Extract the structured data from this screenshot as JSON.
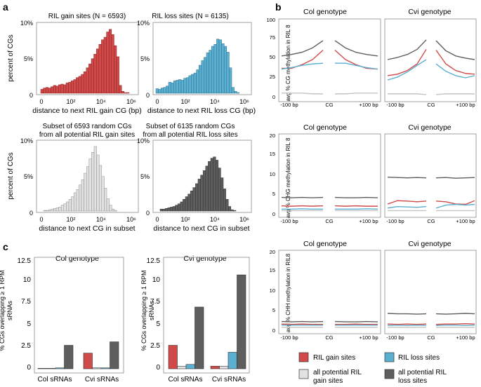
{
  "panel_labels": {
    "a": "a",
    "b": "b",
    "c": "c"
  },
  "colors": {
    "red": "#d14a4a",
    "red_edge": "#8a2020",
    "blue": "#5bafd0",
    "blue_edge": "#2a6f8c",
    "light": "#e2e2e2",
    "light_edge": "#8e8e8e",
    "dark": "#5e5e5e",
    "dark_edge": "#2f2f2f",
    "frame": "#8a8a8a"
  },
  "legend": {
    "items": [
      {
        "label": "RIL gain sites",
        "color": "#d14a4a"
      },
      {
        "label": "RIL loss sites",
        "color": "#5bafd0"
      },
      {
        "label": "all potential RIL gain sites",
        "line1": "all potential RIL",
        "line2": "gain sites",
        "color": "#e2e2e2"
      },
      {
        "label": "all potential RIL loss sites",
        "line1": "all potential RIL",
        "line2": "loss sites",
        "color": "#5e5e5e"
      }
    ]
  },
  "chart_data": [
    {
      "id": "a1",
      "type": "histogram",
      "title": "RIL gain sites (N = 6593)",
      "xlabel": "distance to next RIL gain CG (bp)",
      "ylabel": "percent of CGs",
      "x_ticks": [
        "0",
        "10²",
        "10⁴",
        "10⁶"
      ],
      "y_ticks": [
        "0",
        "5%",
        "10%"
      ],
      "ylim": [
        0,
        10
      ],
      "series_color": "red",
      "values": [
        0.6,
        0.8,
        0.9,
        0.8,
        1.0,
        1.2,
        1.1,
        1.3,
        1.4,
        1.3,
        1.6,
        1.7,
        1.9,
        2.1,
        2.4,
        2.6,
        2.9,
        3.3,
        3.9,
        4.5,
        5.3,
        6.0,
        6.8,
        7.5,
        8.2,
        8.6,
        9.4,
        9.8,
        9.0,
        7.3,
        5.6,
        1.2,
        0.3,
        0.1,
        0.1
      ]
    },
    {
      "id": "a2",
      "type": "histogram",
      "title": "RIL loss sites (N = 6135)",
      "xlabel": "distance to next RIL loss CG (bp)",
      "ylabel": "",
      "x_ticks": [
        "0",
        "10²",
        "10⁴",
        "10⁶"
      ],
      "y_ticks": [
        "0",
        "5%",
        "10%"
      ],
      "ylim": [
        0,
        10
      ],
      "series_color": "blue",
      "values": [
        0.7,
        0.6,
        0.8,
        0.9,
        1.1,
        1.7,
        1.6,
        1.9,
        2.0,
        2.1,
        2.0,
        2.3,
        2.4,
        2.7,
        2.9,
        3.1,
        3.6,
        4.3,
        5.0,
        5.5,
        6.2,
        6.6,
        7.2,
        7.5,
        8.3,
        8.2,
        7.6,
        7.2,
        6.3,
        3.9,
        0.9,
        0.3,
        0.1
      ]
    },
    {
      "id": "a3",
      "type": "histogram",
      "title": "Subset of 6593 random CGs from all potential RIL gain sites",
      "title_line1": "Subset of 6593 random CGs",
      "title_line2": "from all potential RIL gain sites",
      "xlabel": "distance to next CG in subset",
      "ylabel": "percent of CGs",
      "x_ticks": [
        "0",
        "10²",
        "10⁴",
        "10⁶"
      ],
      "y_ticks": [
        "0",
        "5%",
        "10%"
      ],
      "ylim": [
        0,
        10
      ],
      "series_color": "light",
      "values": [
        0.1,
        0.1,
        0.2,
        0.3,
        0.4,
        0.5,
        0.6,
        0.9,
        1.1,
        1.4,
        1.8,
        2.2,
        2.8,
        3.3,
        4.0,
        4.8,
        5.8,
        6.8,
        8.0,
        9.0,
        9.9,
        8.6,
        7.0,
        5.3,
        3.5,
        1.9,
        0.9,
        0.3,
        0.1
      ]
    },
    {
      "id": "a4",
      "type": "histogram",
      "title": "Subset of 6135 random CGs from all potential RIL loss sites",
      "title_line1": "Subset of 6135 random CGs",
      "title_line2": "from all potential RIL loss sites",
      "xlabel": "distance to next CG in subset",
      "ylabel": "",
      "x_ticks": [
        "0",
        "10²",
        "10⁴",
        "10⁶"
      ],
      "y_ticks": [
        "0",
        "5%",
        "10%"
      ],
      "ylim": [
        0,
        10
      ],
      "series_color": "dark",
      "values": [
        0.3,
        0.3,
        0.4,
        0.5,
        0.6,
        0.7,
        0.9,
        1.1,
        1.4,
        1.8,
        2.2,
        2.6,
        3.1,
        3.6,
        4.2,
        4.9,
        5.5,
        6.2,
        6.9,
        7.6,
        8.1,
        8.3,
        7.8,
        6.6,
        5.1,
        3.4,
        1.8,
        0.7,
        0.2,
        0.1
      ]
    },
    {
      "id": "b_cg",
      "type": "line",
      "ylabel": "avg % CG methylation in RIL 8",
      "ylim": [
        0,
        100
      ],
      "y_ticks": [
        "0",
        "25",
        "50",
        "75",
        "100"
      ],
      "x_ticks": [
        "-100 bp",
        "CG",
        "+100 bp"
      ],
      "panels": [
        {
          "title": "Col genotype",
          "series": [
            {
              "color": "dark",
              "left": [
                55,
                57,
                60,
                66,
                76
              ],
              "right": [
                76,
                66,
                60,
                57,
                55
              ]
            },
            {
              "color": "red",
              "left": [
                38,
                38,
                43,
                50,
                63
              ],
              "right": [
                63,
                50,
                43,
                38,
                37
              ]
            },
            {
              "color": "blue",
              "left": [
                37,
                39,
                42,
                44,
                45
              ],
              "right": [
                45,
                45,
                42,
                39,
                37
              ]
            },
            {
              "color": "light",
              "left": [
                4,
                4,
                4,
                3,
                3
              ],
              "right": [
                3,
                3,
                4,
                4,
                4
              ]
            }
          ]
        },
        {
          "title": "Cvi genotype",
          "series": [
            {
              "color": "dark",
              "left": [
                50,
                53,
                57,
                64,
                77
              ],
              "right": [
                76,
                62,
                55,
                52,
                50
              ]
            },
            {
              "color": "red",
              "left": [
                28,
                30,
                35,
                44,
                64
              ],
              "right": [
                63,
                44,
                35,
                31,
                30
              ]
            },
            {
              "color": "blue",
              "left": [
                22,
                26,
                33,
                42,
                50
              ],
              "right": [
                44,
                34,
                28,
                25,
                28
              ]
            },
            {
              "color": "light",
              "left": [
                3,
                3,
                3,
                3,
                2
              ],
              "right": [
                2,
                3,
                3,
                3,
                3
              ]
            }
          ]
        }
      ]
    },
    {
      "id": "b_chg",
      "type": "line",
      "ylabel": "avg % CHG methylation in RIL 8",
      "ylim": [
        0,
        20
      ],
      "y_ticks": [
        "0",
        "5",
        "10",
        "15",
        "20"
      ],
      "x_ticks": [
        "-100 bp",
        "CG",
        "+100 bp"
      ],
      "panels": [
        {
          "title": "Col genotype",
          "series": [
            {
              "color": "dark",
              "left": [
                3.9,
                3.8,
                3.9,
                3.8,
                3.9
              ],
              "right": [
                3.9,
                3.8,
                3.8,
                3.9,
                3.8
              ]
            },
            {
              "color": "red",
              "left": [
                1.6,
                1.5,
                1.6,
                1.5,
                1.6
              ],
              "right": [
                1.6,
                1.5,
                1.6,
                1.5,
                1.5
              ]
            },
            {
              "color": "blue",
              "left": [
                0.7,
                0.7,
                0.8,
                0.7,
                0.7
              ],
              "right": [
                0.7,
                0.7,
                0.7,
                0.8,
                0.7
              ]
            },
            {
              "color": "light",
              "left": [
                0.3,
                0.3,
                0.3,
                0.3,
                0.3
              ],
              "right": [
                0.3,
                0.3,
                0.3,
                0.3,
                0.3
              ]
            }
          ]
        },
        {
          "title": "Cvi genotype",
          "series": [
            {
              "color": "dark",
              "left": [
                9.4,
                9.3,
                9.2,
                9.3,
                9.2
              ],
              "right": [
                9.2,
                9.3,
                9.1,
                9.2,
                9.3
              ]
            },
            {
              "color": "red",
              "left": [
                2.1,
                3.0,
                2.9,
                2.7,
                2.9
              ],
              "right": [
                2.9,
                2.7,
                2.1,
                2.0,
                3.0
              ]
            },
            {
              "color": "blue",
              "left": [
                1.0,
                1.4,
                1.3,
                1.2,
                1.4
              ],
              "right": [
                1.0,
                1.8,
                2.0,
                1.8,
                2.0
              ]
            },
            {
              "color": "light",
              "left": [
                0.3,
                0.3,
                0.3,
                0.3,
                0.3
              ],
              "right": [
                0.3,
                0.3,
                0.3,
                0.3,
                0.3
              ]
            }
          ]
        }
      ]
    },
    {
      "id": "b_chh",
      "type": "line",
      "ylabel": "avg % CHH methylation in RIL8",
      "ylim": [
        0,
        20
      ],
      "y_ticks": [
        "0",
        "5",
        "10",
        "15",
        "20"
      ],
      "x_ticks": [
        "-100 bp",
        "CG",
        "+100 bp"
      ],
      "panels": [
        {
          "title": "Col genotype",
          "series": [
            {
              "color": "dark",
              "left": [
                1.8,
                1.7,
                1.8,
                1.7,
                1.8
              ],
              "right": [
                1.8,
                1.7,
                1.7,
                1.8,
                1.7
              ]
            },
            {
              "color": "red",
              "left": [
                1.1,
                1.0,
                1.1,
                1.0,
                1.0
              ],
              "right": [
                1.0,
                1.0,
                1.1,
                1.0,
                1.0
              ]
            },
            {
              "color": "blue",
              "left": [
                0.8,
                0.8,
                0.8,
                0.8,
                0.8
              ],
              "right": [
                0.8,
                0.8,
                0.8,
                0.8,
                0.8
              ]
            },
            {
              "color": "light",
              "left": [
                0.2,
                0.2,
                0.2,
                0.2,
                0.2
              ],
              "right": [
                0.2,
                0.2,
                0.2,
                0.2,
                0.2
              ]
            }
          ]
        },
        {
          "title": "Cvi genotype",
          "series": [
            {
              "color": "dark",
              "left": [
                4.0,
                3.9,
                3.9,
                3.8,
                3.9
              ],
              "right": [
                3.9,
                3.8,
                3.9,
                4.0,
                3.9
              ]
            },
            {
              "color": "red",
              "left": [
                1.1,
                1.0,
                1.1,
                1.0,
                1.1
              ],
              "right": [
                1.0,
                1.1,
                1.1,
                1.2,
                1.1
              ]
            },
            {
              "color": "blue",
              "left": [
                0.7,
                0.8,
                0.7,
                0.8,
                0.7
              ],
              "right": [
                0.7,
                0.8,
                0.8,
                0.7,
                0.8
              ]
            },
            {
              "color": "light",
              "left": [
                0.2,
                0.2,
                0.2,
                0.2,
                0.2
              ],
              "right": [
                0.2,
                0.2,
                0.2,
                0.2,
                0.2
              ]
            }
          ]
        }
      ]
    },
    {
      "id": "c_col",
      "type": "bar",
      "title": "Col genotype",
      "ylabel": "% CGs overlapping ≥ 1 RPM sRNAs",
      "ylabel_line1": "% CGs overlapping ≥ 1 RPM",
      "ylabel_line2": "sRNAs",
      "ylim": [
        0,
        12.5
      ],
      "y_ticks": [
        "0",
        "2.5",
        "5",
        "7.5",
        "10",
        "12.5"
      ],
      "categories": [
        "Col sRNAs",
        "Cvi sRNAs"
      ],
      "series": [
        {
          "name": "RIL gain sites",
          "color": "red",
          "values": [
            0.0,
            1.8
          ]
        },
        {
          "name": "all potential RIL gain sites",
          "color": "light",
          "values": [
            0.0,
            0.1
          ]
        },
        {
          "name": "RIL loss sites",
          "color": "blue",
          "values": [
            0.1,
            0.1
          ]
        },
        {
          "name": "all potential RIL loss sites",
          "color": "dark",
          "values": [
            2.7,
            3.1
          ]
        }
      ]
    },
    {
      "id": "c_cvi",
      "type": "bar",
      "title": "Cvi genotype",
      "ylabel": "% CGs overlapping ≥ 1 RPM sRNAs",
      "ylabel_line1": "% CGs overlapping ≥ 1 RPM",
      "ylabel_line2": "sRNAs",
      "ylim": [
        0,
        12.5
      ],
      "y_ticks": [
        "0",
        "2.5",
        "5",
        "7.5",
        "10",
        "12.5"
      ],
      "categories": [
        "Col sRNAs",
        "Cvi sRNAs"
      ],
      "series": [
        {
          "name": "RIL gain sites",
          "color": "red",
          "values": [
            2.7,
            0.3
          ]
        },
        {
          "name": "all potential RIL gain sites",
          "color": "light",
          "values": [
            0.3,
            0.3
          ]
        },
        {
          "name": "RIL loss sites",
          "color": "blue",
          "values": [
            0.5,
            1.9
          ]
        },
        {
          "name": "all potential RIL loss sites",
          "color": "dark",
          "values": [
            7.1,
            10.8
          ]
        }
      ]
    }
  ]
}
